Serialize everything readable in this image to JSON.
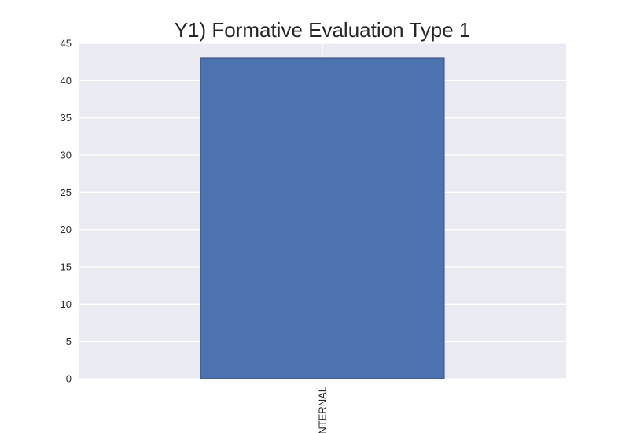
{
  "chart_data": {
    "type": "bar",
    "title": "Y1) Formative Evaluation Type 1",
    "xlabel": "",
    "ylabel": "",
    "categories": [
      "INTERNAL"
    ],
    "values": [
      43
    ],
    "ylim": [
      0,
      45
    ],
    "yticks": [
      0,
      5,
      10,
      15,
      20,
      25,
      30,
      35,
      40,
      45
    ],
    "grid": true,
    "legend": "none",
    "colors": {
      "bar": "#4c72b0",
      "bar_edge": "#3a4f7a",
      "plot_background": "#eaeaf2",
      "grid": "#ffffff"
    }
  }
}
